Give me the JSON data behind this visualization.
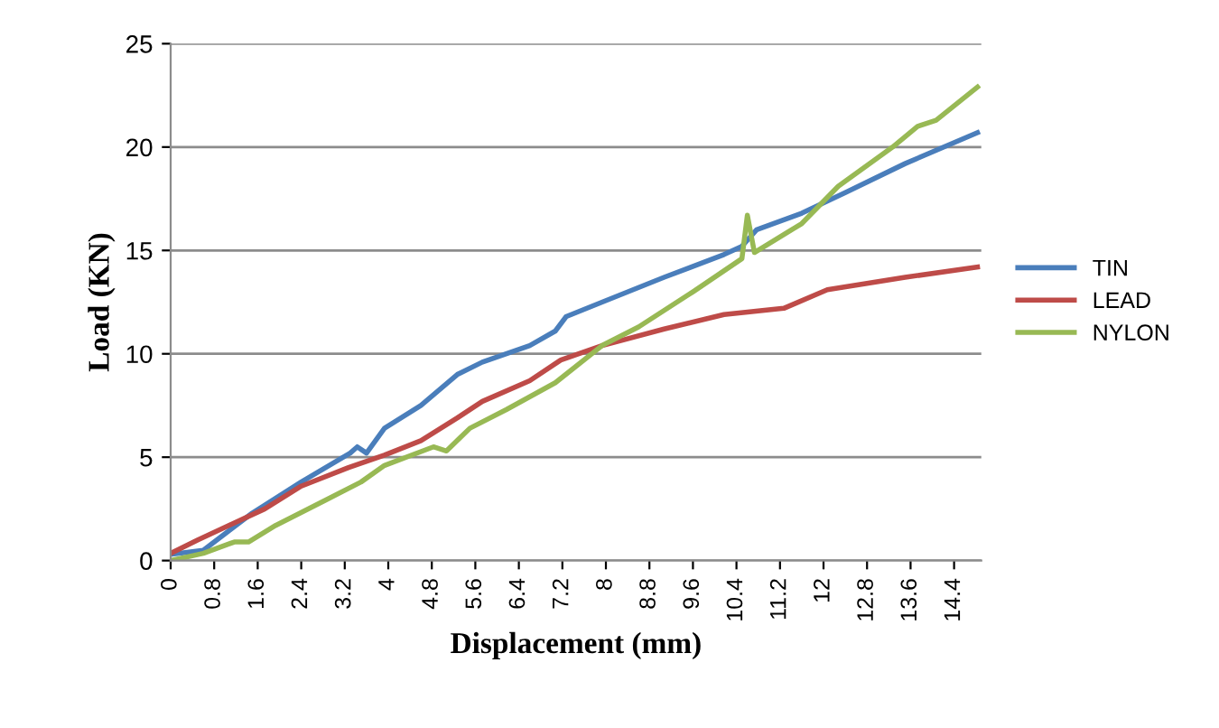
{
  "chart_data": {
    "type": "line",
    "xlabel": "Displacement (mm)",
    "ylabel": "Load (KN)",
    "xlim": [
      0,
      14.9
    ],
    "ylim": [
      0,
      25
    ],
    "xticks": [
      0,
      0.8,
      1.6,
      2.4,
      3.2,
      4,
      4.8,
      5.6,
      6.4,
      7.2,
      8,
      8.8,
      9.6,
      10.4,
      11.2,
      12,
      12.8,
      13.6,
      14.4
    ],
    "yticks": [
      0,
      5,
      10,
      15,
      20,
      25
    ],
    "grid": "y",
    "legend": "right",
    "marker": "none",
    "line_style": "solid",
    "series": [
      {
        "name": "TIN",
        "color": "#4a7ebb",
        "x": [
          0,
          0.6,
          1.5,
          2.4,
          3.3,
          3.43,
          3.6,
          3.93,
          4.6,
          5.27,
          5.73,
          6.6,
          7.07,
          7.27,
          7.93,
          9.07,
          10.17,
          10.5,
          10.77,
          11.6,
          12.4,
          13.5,
          14.83
        ],
        "values": [
          0.3,
          0.5,
          2.3,
          3.8,
          5.2,
          5.5,
          5.2,
          6.4,
          7.5,
          9.0,
          9.6,
          10.4,
          11.1,
          11.8,
          12.5,
          13.7,
          14.8,
          15.2,
          16.0,
          16.8,
          17.8,
          19.2,
          20.7
        ]
      },
      {
        "name": "LEAD",
        "color": "#be4b48",
        "x": [
          0,
          0.5,
          1.07,
          1.73,
          2.4,
          3.27,
          3.93,
          4.6,
          5.27,
          5.73,
          6.6,
          7.17,
          7.93,
          9.07,
          10.17,
          11.27,
          12.07,
          13.5,
          14.83
        ],
        "values": [
          0.35,
          1.0,
          1.7,
          2.5,
          3.6,
          4.5,
          5.1,
          5.8,
          6.9,
          7.7,
          8.7,
          9.7,
          10.4,
          11.2,
          11.9,
          12.2,
          13.1,
          13.7,
          14.2
        ]
      },
      {
        "name": "NYLON",
        "color": "#98b954",
        "x": [
          0,
          0.6,
          1.17,
          1.43,
          1.93,
          2.83,
          3.5,
          3.93,
          4.83,
          5.07,
          5.5,
          6.17,
          7.07,
          7.93,
          8.6,
          9.6,
          10.5,
          10.6,
          10.73,
          11.6,
          12.27,
          13.27,
          13.73,
          14.07,
          14.83
        ],
        "values": [
          0,
          0.35,
          0.9,
          0.9,
          1.7,
          2.9,
          3.8,
          4.6,
          5.5,
          5.3,
          6.4,
          7.3,
          8.6,
          10.4,
          11.3,
          13.0,
          14.6,
          16.7,
          14.9,
          16.3,
          18.1,
          20.0,
          21.0,
          21.3,
          22.9
        ]
      }
    ]
  }
}
